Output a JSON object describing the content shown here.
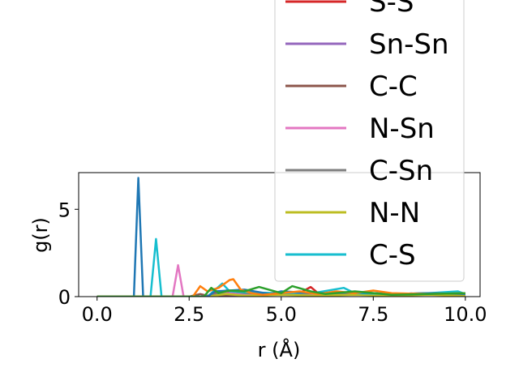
{
  "chart_data": {
    "type": "line",
    "xlabel": "r (Å)",
    "ylabel": "g(r)",
    "xlim": [
      -0.5,
      10.4
    ],
    "ylim": [
      0,
      7.1
    ],
    "x_ticks": [
      "0.0",
      "2.5",
      "5.0",
      "7.5",
      "10.0"
    ],
    "x_tick_values": [
      0,
      2.5,
      5,
      7.5,
      10
    ],
    "y_ticks": [
      "0",
      "5"
    ],
    "y_tick_values": [
      0,
      5
    ],
    "legend_position": "top-right",
    "series": [
      {
        "name": "S-S",
        "color": "#d62728",
        "x": [
          0,
          3.0,
          3.2,
          3.4,
          3.6,
          3.8,
          4.0,
          4.5,
          5.0,
          5.5,
          5.8,
          6.0,
          7.0,
          8.0,
          9.0,
          10.0
        ],
        "values": [
          0,
          0,
          0.25,
          0.1,
          0.3,
          0.15,
          0.2,
          0.15,
          0.25,
          0.2,
          0.55,
          0.2,
          0.2,
          0.15,
          0.15,
          0.15
        ]
      },
      {
        "name": "Sn-Sn",
        "color": "#9467bd",
        "x": [
          0,
          4.5,
          4.8,
          5.0,
          5.5,
          6.0,
          6.5,
          7.0,
          8.0,
          9.0,
          10.0
        ],
        "values": [
          0,
          0,
          0.2,
          0.1,
          0.15,
          0.25,
          0.1,
          0.2,
          0.15,
          0.2,
          0.15
        ]
      },
      {
        "name": "C-C",
        "color": "#8c564b",
        "x": [
          0,
          2.5,
          2.8,
          3.0,
          4.0,
          5.0,
          6.0,
          7.0,
          8.0,
          9.0,
          10.0
        ],
        "values": [
          0,
          0,
          0.15,
          0.05,
          0.1,
          0.1,
          0.1,
          0.1,
          0.1,
          0.1,
          0.1
        ]
      },
      {
        "name": "N-Sn",
        "color": "#e377c2",
        "x": [
          0,
          2.05,
          2.2,
          2.35,
          3.0,
          3.5,
          4.0,
          5.0,
          6.0,
          7.0,
          8.0,
          9.0,
          10.0
        ],
        "values": [
          0,
          0,
          1.8,
          0,
          0,
          0.2,
          0.1,
          0.15,
          0.1,
          0.15,
          0.1,
          0.15,
          0.1
        ]
      },
      {
        "name": "C-Sn",
        "color": "#7f7f7f",
        "x": [
          0,
          3.0,
          3.5,
          4.0,
          5.0,
          6.0,
          7.0,
          8.0,
          9.0,
          10.0
        ],
        "values": [
          0,
          0,
          0.35,
          0.2,
          0.15,
          0.2,
          0.1,
          0.15,
          0.1,
          0.1
        ]
      },
      {
        "name": "N-N",
        "color": "#bcbd22",
        "x": [
          0,
          3.0,
          3.5,
          4.0,
          5.0,
          6.0,
          7.0,
          8.0,
          9.0,
          10.0
        ],
        "values": [
          0,
          0,
          0.15,
          0.05,
          0.1,
          0.05,
          0.1,
          0.05,
          0.1,
          0.05
        ]
      },
      {
        "name": "C-S",
        "color": "#17becf",
        "x": [
          0,
          1.45,
          1.6,
          1.75,
          3.0,
          3.4,
          3.6,
          4.0,
          5.0,
          6.0,
          6.7,
          7.0,
          8.0,
          9.0,
          9.8,
          10.0
        ],
        "values": [
          0,
          0,
          3.3,
          0,
          0,
          0.75,
          0.3,
          0.25,
          0.2,
          0.25,
          0.5,
          0.2,
          0.15,
          0.2,
          0.3,
          0.15
        ]
      },
      {
        "name": "",
        "color": "#1f77b4",
        "x": [
          0,
          1.0,
          1.12,
          1.25,
          3.0,
          3.2,
          4.0,
          4.7,
          5.0,
          6.0,
          7.0,
          8.0,
          9.0,
          10.0
        ],
        "values": [
          0,
          0,
          6.8,
          0,
          0,
          0.3,
          0.4,
          0.15,
          0.3,
          0.2,
          0.25,
          0.15,
          0.2,
          0.15
        ]
      },
      {
        "name": "",
        "color": "#ff7f0e",
        "x": [
          0,
          2.6,
          2.8,
          3.0,
          3.3,
          3.6,
          3.7,
          3.9,
          4.2,
          4.5,
          5.0,
          5.5,
          6.0,
          6.5,
          7.0,
          7.5,
          8.0,
          9.0,
          10.0
        ],
        "values": [
          0,
          0,
          0.6,
          0.3,
          0.5,
          0.95,
          1.0,
          0.4,
          0.2,
          0.1,
          0.2,
          0.3,
          0.15,
          0.3,
          0.2,
          0.35,
          0.2,
          0.15,
          0.2
        ]
      },
      {
        "name": "",
        "color": "#2ca02c",
        "x": [
          0,
          2.9,
          3.1,
          3.3,
          3.6,
          4.0,
          4.4,
          5.0,
          5.3,
          5.8,
          6.2,
          7.0,
          8.0,
          9.0,
          10.0
        ],
        "values": [
          0,
          0,
          0.5,
          0.2,
          0.35,
          0.3,
          0.55,
          0.2,
          0.6,
          0.3,
          0.15,
          0.3,
          0.1,
          0.15,
          0.2
        ]
      }
    ],
    "legend": [
      "S-S",
      "Sn-Sn",
      "C-C",
      "N-Sn",
      "C-Sn",
      "N-N",
      "C-S"
    ]
  }
}
